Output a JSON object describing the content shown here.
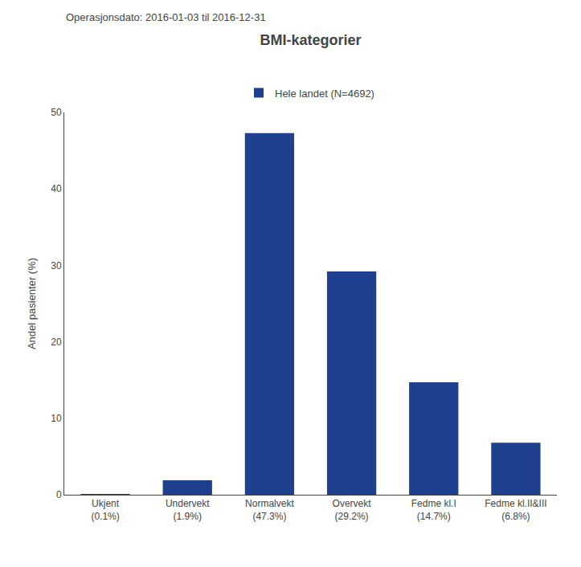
{
  "chart_data": {
    "type": "bar",
    "title": "BMI-kategorier",
    "subtitle": "Operasjonsdato: 2016-01-03 til 2016-12-31",
    "categories": [
      "Ukjent\n(0.1%)",
      "Undervekt\n(1.9%)",
      "Normalvekt\n(47.3%)",
      "Overvekt\n(29.2%)",
      "Fedme kl.I\n(14.7%)",
      "Fedme kl.II&III\n(6.8%)"
    ],
    "series": [
      {
        "name": "Hele landet (N=4692)",
        "color": "#1f3f8f",
        "values": [
          0.1,
          1.9,
          47.3,
          29.2,
          14.7,
          6.8
        ]
      }
    ],
    "ylabel": "Andel pasienter (%)",
    "ylim": [
      0,
      50
    ],
    "yticks": [
      0,
      10,
      20,
      30,
      40,
      50
    ],
    "grid": false,
    "legend": "top"
  }
}
